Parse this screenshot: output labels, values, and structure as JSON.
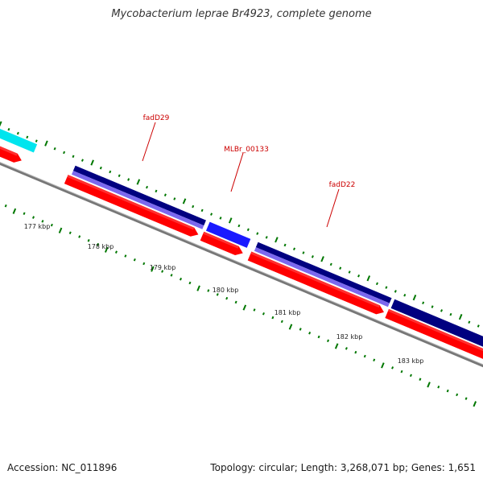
{
  "title": "Mycobacterium leprae Br4923, complete genome",
  "footer": {
    "accession": "Accession: NC_011896",
    "info": "Topology: circular; Length: 3,268,071 bp; Genes: 1,651"
  },
  "colors": {
    "background": "#ffffff",
    "backbone": "#777777",
    "cds_forward": "#ff0000",
    "cds_forward_highlight": "#ff5555",
    "gene_dark_navy": "#000080",
    "gene_light_purple": "#7b68ee",
    "gene_blue": "#1a1aff",
    "gene_cyan": "#00e5ee",
    "tick_green": "#007700",
    "label_red": "#cc0000"
  },
  "scale_labels": [
    "177 kbp",
    "178 kbp",
    "179 kbp",
    "180 kbp",
    "181 kbp",
    "182 kbp",
    "183 kbp"
  ],
  "gene_labels": [
    "fadD29",
    "MLBr_00133",
    "fadD22"
  ]
}
